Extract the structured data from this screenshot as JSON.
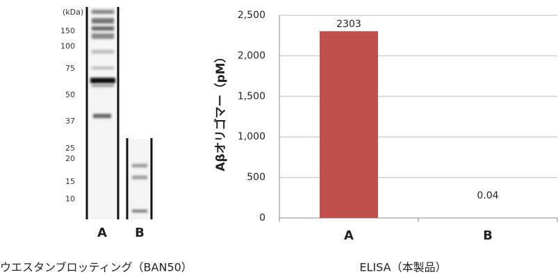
{
  "gel": {
    "unit_label": "(kDa)",
    "markers": [
      150,
      100,
      75,
      50,
      37,
      25,
      20,
      15,
      10
    ],
    "lanes": [
      "A",
      "B"
    ],
    "caption": "ウエスタンブロッティング（BAN50）"
  },
  "chart_data": {
    "type": "bar",
    "caption": "ELISA（本製品）",
    "y_label": "Aβオリゴマー（pM）",
    "categories": [
      "A",
      "B"
    ],
    "values": [
      2303,
      0.04
    ],
    "color": "#c0504d",
    "ylim": [
      0,
      2500
    ],
    "yticks": [
      0,
      500,
      {
        "value": 1000,
        "label": "1,000"
      },
      {
        "value": 1500,
        "label": "1,500"
      },
      {
        "value": 2000,
        "label": "2,000"
      },
      {
        "value": 2500,
        "label": "2,500"
      }
    ],
    "grid": true
  }
}
